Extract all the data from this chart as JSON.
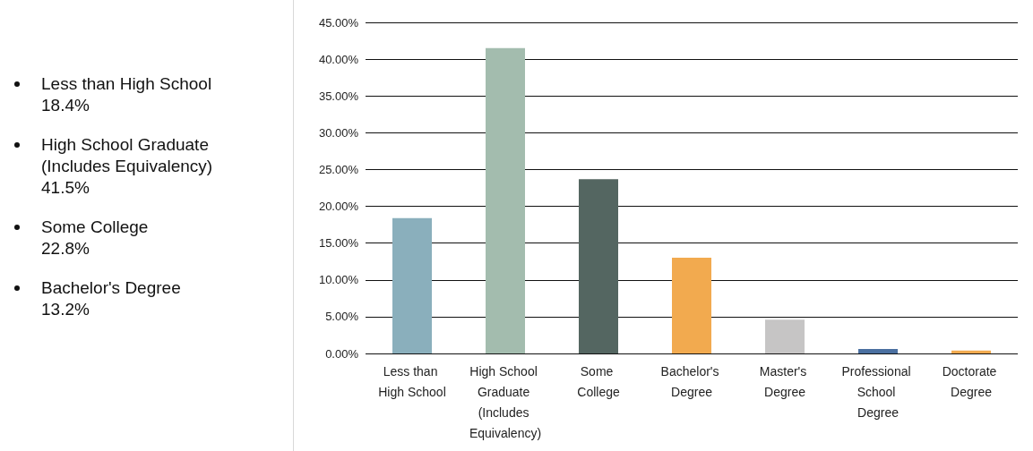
{
  "chart_data": {
    "type": "bar",
    "categories": [
      "Less than High School",
      "High School Graduate (Includes Equivalency)",
      "Some College",
      "Bachelor's Degree",
      "Master's Degree",
      "Professional School Degree",
      "Doctorate Degree"
    ],
    "values": [
      18.4,
      41.5,
      23.7,
      13.0,
      4.6,
      0.6,
      0.4
    ],
    "colors": [
      "#8aafbc",
      "#a3bcae",
      "#546661",
      "#f2aa4f",
      "#c6c5c5",
      "#4a6fa0",
      "#f2aa4f"
    ],
    "ylim": [
      0,
      45
    ],
    "yticks": [
      {
        "value": 0,
        "label": "0.00%"
      },
      {
        "value": 5,
        "label": "5.00%"
      },
      {
        "value": 10,
        "label": "10.00%"
      },
      {
        "value": 15,
        "label": "15.00%"
      },
      {
        "value": 20,
        "label": "20.00%"
      },
      {
        "value": 25,
        "label": "25.00%"
      },
      {
        "value": 30,
        "label": "30.00%"
      },
      {
        "value": 35,
        "label": "35.00%"
      },
      {
        "value": 40,
        "label": "40.00%"
      },
      {
        "value": 45,
        "label": "45.00%"
      }
    ],
    "grid": "y",
    "annotations": [
      "Less than High School\n18.4%",
      "High School Graduate\n(Includes Equivalency)\n41.5%",
      "Some College\n22.8%",
      "Bachelor's Degree\n13.2%"
    ]
  }
}
